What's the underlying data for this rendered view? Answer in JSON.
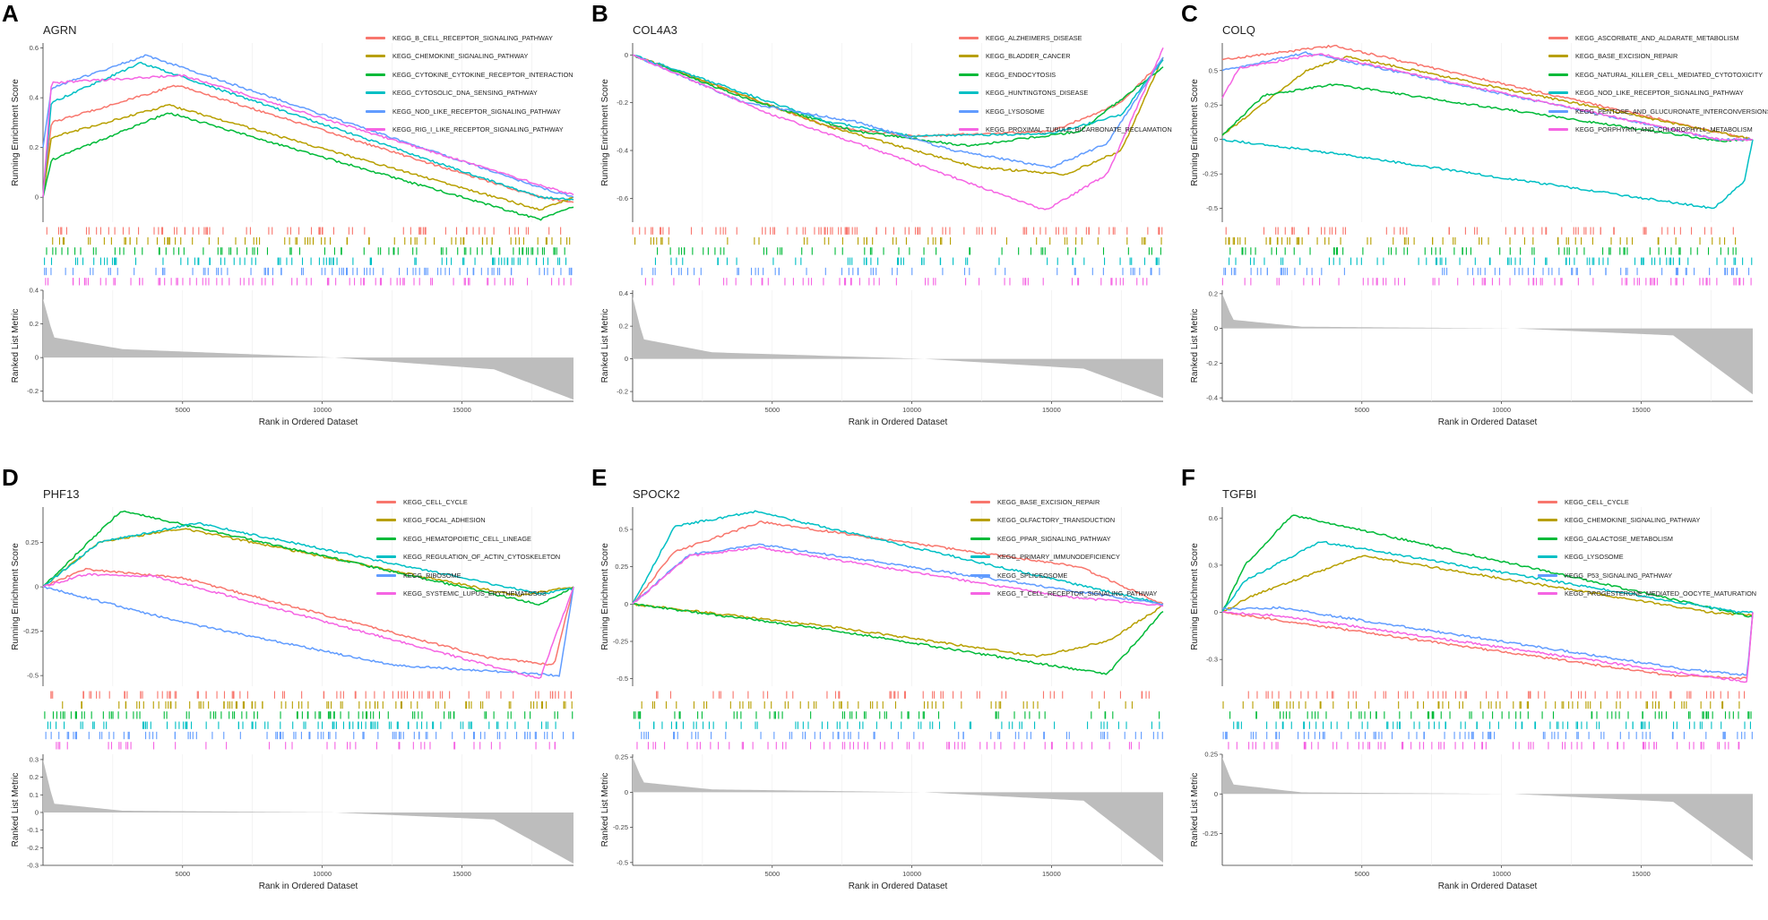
{
  "x_axis_title": "Rank in Ordered Dataset",
  "y_top_title": "Running Enrichment Score",
  "y_bottom_title": "Ranked List Metric",
  "x_ticks": [
    5000,
    10000,
    15000
  ],
  "x_max": 19000,
  "palette": [
    "#F8766D",
    "#B79F00",
    "#00BA38",
    "#00BFC4",
    "#619CFF",
    "#F564E3"
  ],
  "chart_data": [
    {
      "letter": "A",
      "gene": "AGRN",
      "type": "line",
      "es_ylim": [
        -0.1,
        0.62
      ],
      "es_ticks": [
        0.0,
        0.2,
        0.4,
        0.6
      ],
      "metric_ylim": [
        -0.26,
        0.4
      ],
      "metric_ticks": [
        -0.2,
        0.0,
        0.2,
        0.4
      ],
      "metric_shape": [
        0.35,
        0.12,
        0.05,
        0.0,
        -0.07,
        -0.25
      ],
      "series": [
        {
          "name": "KEGG_B_CELL_RECEPTOR_SIGNALING_PATHWAY",
          "points": [
            [
              0,
              0
            ],
            [
              300,
              0.3
            ],
            [
              4800,
              0.45
            ],
            [
              17800,
              0.0
            ],
            [
              19000,
              -0.02
            ]
          ]
        },
        {
          "name": "KEGG_CHEMOKINE_SIGNALING_PATHWAY",
          "points": [
            [
              0,
              0
            ],
            [
              300,
              0.24
            ],
            [
              4500,
              0.37
            ],
            [
              17800,
              -0.05
            ],
            [
              19000,
              0.0
            ]
          ]
        },
        {
          "name": "KEGG_CYTOKINE_CYTOKINE_RECEPTOR_INTERACTION",
          "points": [
            [
              0,
              0
            ],
            [
              300,
              0.15
            ],
            [
              4500,
              0.34
            ],
            [
              17800,
              -0.09
            ],
            [
              19000,
              -0.04
            ]
          ]
        },
        {
          "name": "KEGG_CYTOSOLIC_DNA_SENSING_PATHWAY",
          "points": [
            [
              0,
              0
            ],
            [
              300,
              0.38
            ],
            [
              3500,
              0.54
            ],
            [
              17800,
              0.0
            ],
            [
              19000,
              -0.01
            ]
          ]
        },
        {
          "name": "KEGG_NOD_LIKE_RECEPTOR_SIGNALING_PATHWAY",
          "points": [
            [
              0,
              0.2
            ],
            [
              300,
              0.44
            ],
            [
              3700,
              0.57
            ],
            [
              17800,
              0.04
            ],
            [
              19000,
              0.0
            ]
          ]
        },
        {
          "name": "KEGG_RIG_I_LIKE_RECEPTOR_SIGNALING_PATHWAY",
          "points": [
            [
              0,
              0
            ],
            [
              300,
              0.46
            ],
            [
              5000,
              0.49
            ],
            [
              17800,
              0.05
            ],
            [
              19000,
              0.01
            ]
          ]
        }
      ]
    },
    {
      "letter": "B",
      "gene": "COL4A3",
      "type": "line",
      "es_ylim": [
        -0.7,
        0.05
      ],
      "es_ticks": [
        -0.6,
        -0.4,
        -0.2,
        0.0
      ],
      "metric_ylim": [
        -0.26,
        0.42
      ],
      "metric_ticks": [
        -0.2,
        0.0,
        0.2,
        0.4
      ],
      "metric_shape": [
        0.38,
        0.12,
        0.04,
        0.0,
        -0.06,
        -0.24
      ],
      "series": [
        {
          "name": "KEGG_ALZHEIMERS_DISEASE",
          "points": [
            [
              0,
              0
            ],
            [
              7000,
              -0.3
            ],
            [
              10000,
              -0.34
            ],
            [
              15000,
              -0.32
            ],
            [
              17500,
              -0.2
            ],
            [
              19000,
              -0.02
            ]
          ]
        },
        {
          "name": "KEGG_BLADDER_CANCER",
          "points": [
            [
              0,
              0
            ],
            [
              7000,
              -0.3
            ],
            [
              12300,
              -0.47
            ],
            [
              15500,
              -0.5
            ],
            [
              17500,
              -0.4
            ],
            [
              19000,
              -0.01
            ]
          ]
        },
        {
          "name": "KEGG_ENDOCYTOSIS",
          "points": [
            [
              0,
              0
            ],
            [
              4000,
              -0.18
            ],
            [
              8000,
              -0.32
            ],
            [
              12000,
              -0.38
            ],
            [
              16000,
              -0.32
            ],
            [
              19000,
              -0.05
            ]
          ]
        },
        {
          "name": "KEGG_HUNTINGTONS_DISEASE",
          "points": [
            [
              0,
              0
            ],
            [
              7000,
              -0.28
            ],
            [
              10000,
              -0.34
            ],
            [
              15000,
              -0.33
            ],
            [
              17500,
              -0.25
            ],
            [
              19000,
              -0.02
            ]
          ]
        },
        {
          "name": "KEGG_LYSOSOME",
          "points": [
            [
              0,
              0
            ],
            [
              4000,
              -0.2
            ],
            [
              8000,
              -0.28
            ],
            [
              11500,
              -0.4
            ],
            [
              15000,
              -0.47
            ],
            [
              17000,
              -0.37
            ],
            [
              19000,
              -0.01
            ]
          ]
        },
        {
          "name": "KEGG_PROXIMAL_TUBULE_BICARBONATE_RECLAMATION",
          "points": [
            [
              0,
              0
            ],
            [
              5000,
              -0.25
            ],
            [
              10000,
              -0.45
            ],
            [
              14800,
              -0.65
            ],
            [
              17000,
              -0.5
            ],
            [
              19000,
              0.03
            ]
          ]
        }
      ]
    },
    {
      "letter": "C",
      "gene": "COLQ",
      "type": "line",
      "es_ylim": [
        -0.6,
        0.7
      ],
      "es_ticks": [
        -0.5,
        -0.25,
        0.0,
        0.25,
        0.5
      ],
      "metric_ylim": [
        -0.42,
        0.22
      ],
      "metric_ticks": [
        -0.4,
        -0.2,
        0.0,
        0.2
      ],
      "metric_shape": [
        0.2,
        0.05,
        0.01,
        0.0,
        -0.04,
        -0.38
      ],
      "series": [
        {
          "name": "KEGG_ASCORBATE_AND_ALDARATE_METABOLISM",
          "points": [
            [
              0,
              0.58
            ],
            [
              4000,
              0.68
            ],
            [
              17800,
              0.05
            ],
            [
              19000,
              0.0
            ]
          ]
        },
        {
          "name": "KEGG_BASE_EXCISION_REPAIR",
          "points": [
            [
              0,
              0.03
            ],
            [
              3000,
              0.5
            ],
            [
              4500,
              0.6
            ],
            [
              17800,
              0.05
            ],
            [
              19000,
              0.0
            ]
          ]
        },
        {
          "name": "KEGG_NATURAL_KILLER_CELL_MEDIATED_CYTOTOXICITY",
          "points": [
            [
              0,
              0.03
            ],
            [
              1500,
              0.32
            ],
            [
              4000,
              0.4
            ],
            [
              17800,
              -0.01
            ],
            [
              19000,
              0.0
            ]
          ]
        },
        {
          "name": "KEGG_NOD_LIKE_RECEPTOR_SIGNALING_PATHWAY",
          "points": [
            [
              0,
              0
            ],
            [
              4000,
              -0.1
            ],
            [
              17600,
              -0.5
            ],
            [
              18700,
              -0.3
            ],
            [
              19000,
              0.0
            ]
          ]
        },
        {
          "name": "KEGG_PENTOSE_AND_GLUCURONATE_INTERCONVERSIONS",
          "points": [
            [
              0,
              0.5
            ],
            [
              3000,
              0.63
            ],
            [
              17800,
              0.0
            ],
            [
              19000,
              0.0
            ]
          ]
        },
        {
          "name": "KEGG_PORPHYRIN_AND_CHLOROPHYLL_METABOLISM",
          "points": [
            [
              0,
              0.3
            ],
            [
              600,
              0.52
            ],
            [
              3500,
              0.62
            ],
            [
              17800,
              0.0
            ],
            [
              19000,
              0.0
            ]
          ]
        }
      ]
    },
    {
      "letter": "D",
      "gene": "PHF13",
      "type": "line",
      "es_ylim": [
        -0.56,
        0.45
      ],
      "es_ticks": [
        -0.5,
        -0.25,
        0.0,
        0.25
      ],
      "metric_ylim": [
        -0.3,
        0.33
      ],
      "metric_ticks": [
        -0.3,
        -0.2,
        -0.1,
        0.0,
        0.1,
        0.2,
        0.3
      ],
      "metric_shape": [
        0.3,
        0.05,
        0.01,
        0.0,
        -0.04,
        -0.29
      ],
      "series": [
        {
          "name": "KEGG_CELL_CYCLE",
          "points": [
            [
              0,
              0
            ],
            [
              1500,
              0.1
            ],
            [
              5000,
              0.05
            ],
            [
              16000,
              -0.4
            ],
            [
              18300,
              -0.44
            ],
            [
              19000,
              0.0
            ]
          ]
        },
        {
          "name": "KEGG_FOCAL_ADHESION",
          "points": [
            [
              0,
              0
            ],
            [
              2000,
              0.25
            ],
            [
              5000,
              0.33
            ],
            [
              17000,
              -0.05
            ],
            [
              19000,
              0.0
            ]
          ]
        },
        {
          "name": "KEGG_HEMATOPOIETIC_CELL_LINEAGE",
          "points": [
            [
              0,
              0
            ],
            [
              2800,
              0.43
            ],
            [
              17800,
              -0.1
            ],
            [
              19000,
              0.0
            ]
          ]
        },
        {
          "name": "KEGG_REGULATION_OF_ACTIN_CYTOSKELETON",
          "points": [
            [
              0,
              0
            ],
            [
              2000,
              0.25
            ],
            [
              5500,
              0.36
            ],
            [
              17800,
              -0.04
            ],
            [
              19000,
              -0.01
            ]
          ]
        },
        {
          "name": "KEGG_RIBOSOME",
          "points": [
            [
              0,
              0
            ],
            [
              5000,
              -0.2
            ],
            [
              12500,
              -0.44
            ],
            [
              18500,
              -0.5
            ],
            [
              19000,
              0.0
            ]
          ]
        },
        {
          "name": "KEGG_SYSTEMIC_LUPUS_ERYTHEMATOSUS",
          "points": [
            [
              0,
              0
            ],
            [
              1500,
              0.07
            ],
            [
              4000,
              0.06
            ],
            [
              17800,
              -0.52
            ],
            [
              19000,
              0.0
            ]
          ]
        }
      ]
    },
    {
      "letter": "E",
      "gene": "SPOCK2",
      "type": "line",
      "es_ylim": [
        -0.55,
        0.65
      ],
      "es_ticks": [
        -0.5,
        -0.25,
        0.0,
        0.25,
        0.5
      ],
      "metric_ylim": [
        -0.52,
        0.27
      ],
      "metric_ticks": [
        -0.5,
        -0.25,
        0.0,
        0.25
      ],
      "metric_shape": [
        0.25,
        0.07,
        0.02,
        0.0,
        -0.06,
        -0.5
      ],
      "series": [
        {
          "name": "KEGG_BASE_EXCISION_REPAIR",
          "points": [
            [
              0,
              0
            ],
            [
              1500,
              0.35
            ],
            [
              4600,
              0.55
            ],
            [
              16000,
              0.25
            ],
            [
              19000,
              0.0
            ]
          ]
        },
        {
          "name": "KEGG_OLFACTORY_TRANSDUCTION",
          "points": [
            [
              0,
              0
            ],
            [
              7000,
              -0.15
            ],
            [
              14500,
              -0.35
            ],
            [
              17000,
              -0.25
            ],
            [
              19000,
              -0.01
            ]
          ]
        },
        {
          "name": "KEGG_PPAR_SIGNALING_PATHWAY",
          "points": [
            [
              0,
              0
            ],
            [
              7000,
              -0.17
            ],
            [
              17000,
              -0.47
            ],
            [
              19000,
              -0.05
            ]
          ]
        },
        {
          "name": "KEGG_PRIMARY_IMMUNODEFICIENCY",
          "points": [
            [
              0,
              0
            ],
            [
              1500,
              0.52
            ],
            [
              4400,
              0.62
            ],
            [
              19000,
              0.0
            ]
          ]
        },
        {
          "name": "KEGG_SPLICEOSOME",
          "points": [
            [
              0,
              0
            ],
            [
              2000,
              0.33
            ],
            [
              4500,
              0.4
            ],
            [
              19000,
              0.0
            ]
          ]
        },
        {
          "name": "KEGG_T_CELL_RECEPTOR_SIGNALING_PATHWAY",
          "points": [
            [
              0,
              0
            ],
            [
              2000,
              0.32
            ],
            [
              4500,
              0.38
            ],
            [
              15500,
              0.05
            ],
            [
              19000,
              -0.01
            ]
          ]
        }
      ]
    },
    {
      "letter": "F",
      "gene": "TGFBI",
      "type": "line",
      "es_ylim": [
        -0.47,
        0.67
      ],
      "es_ticks": [
        -0.3,
        0.0,
        0.3,
        0.6
      ],
      "metric_ylim": [
        -0.45,
        0.25
      ],
      "metric_ticks": [
        -0.25,
        0.0,
        0.25
      ],
      "metric_shape": [
        0.23,
        0.06,
        0.01,
        0.0,
        -0.05,
        -0.42
      ],
      "series": [
        {
          "name": "KEGG_CELL_CYCLE",
          "points": [
            [
              0,
              0
            ],
            [
              2000,
              -0.05
            ],
            [
              16000,
              -0.4
            ],
            [
              18800,
              -0.42
            ],
            [
              19000,
              0.0
            ]
          ]
        },
        {
          "name": "KEGG_CHEMOKINE_SIGNALING_PATHWAY",
          "points": [
            [
              0,
              0
            ],
            [
              1000,
              0.1
            ],
            [
              5000,
              0.36
            ],
            [
              17500,
              0.0
            ],
            [
              19000,
              -0.02
            ]
          ]
        },
        {
          "name": "KEGG_GALACTOSE_METABOLISM",
          "points": [
            [
              0,
              0
            ],
            [
              800,
              0.3
            ],
            [
              2500,
              0.62
            ],
            [
              19000,
              -0.03
            ]
          ]
        },
        {
          "name": "KEGG_LYSOSOME",
          "points": [
            [
              0,
              0
            ],
            [
              800,
              0.2
            ],
            [
              3500,
              0.45
            ],
            [
              18500,
              0.0
            ],
            [
              19000,
              0.0
            ]
          ]
        },
        {
          "name": "KEGG_P53_SIGNALING_PATHWAY",
          "points": [
            [
              0,
              0.02
            ],
            [
              2000,
              0.03
            ],
            [
              16500,
              -0.36
            ],
            [
              18800,
              -0.4
            ],
            [
              19000,
              0.0
            ]
          ]
        },
        {
          "name": "KEGG_PROGESTERONE_MEDIATED_OOCYTE_MATURATION",
          "points": [
            [
              0,
              0
            ],
            [
              2000,
              -0.02
            ],
            [
              17000,
              -0.4
            ],
            [
              18800,
              -0.44
            ],
            [
              19000,
              0.0
            ]
          ]
        }
      ]
    }
  ]
}
